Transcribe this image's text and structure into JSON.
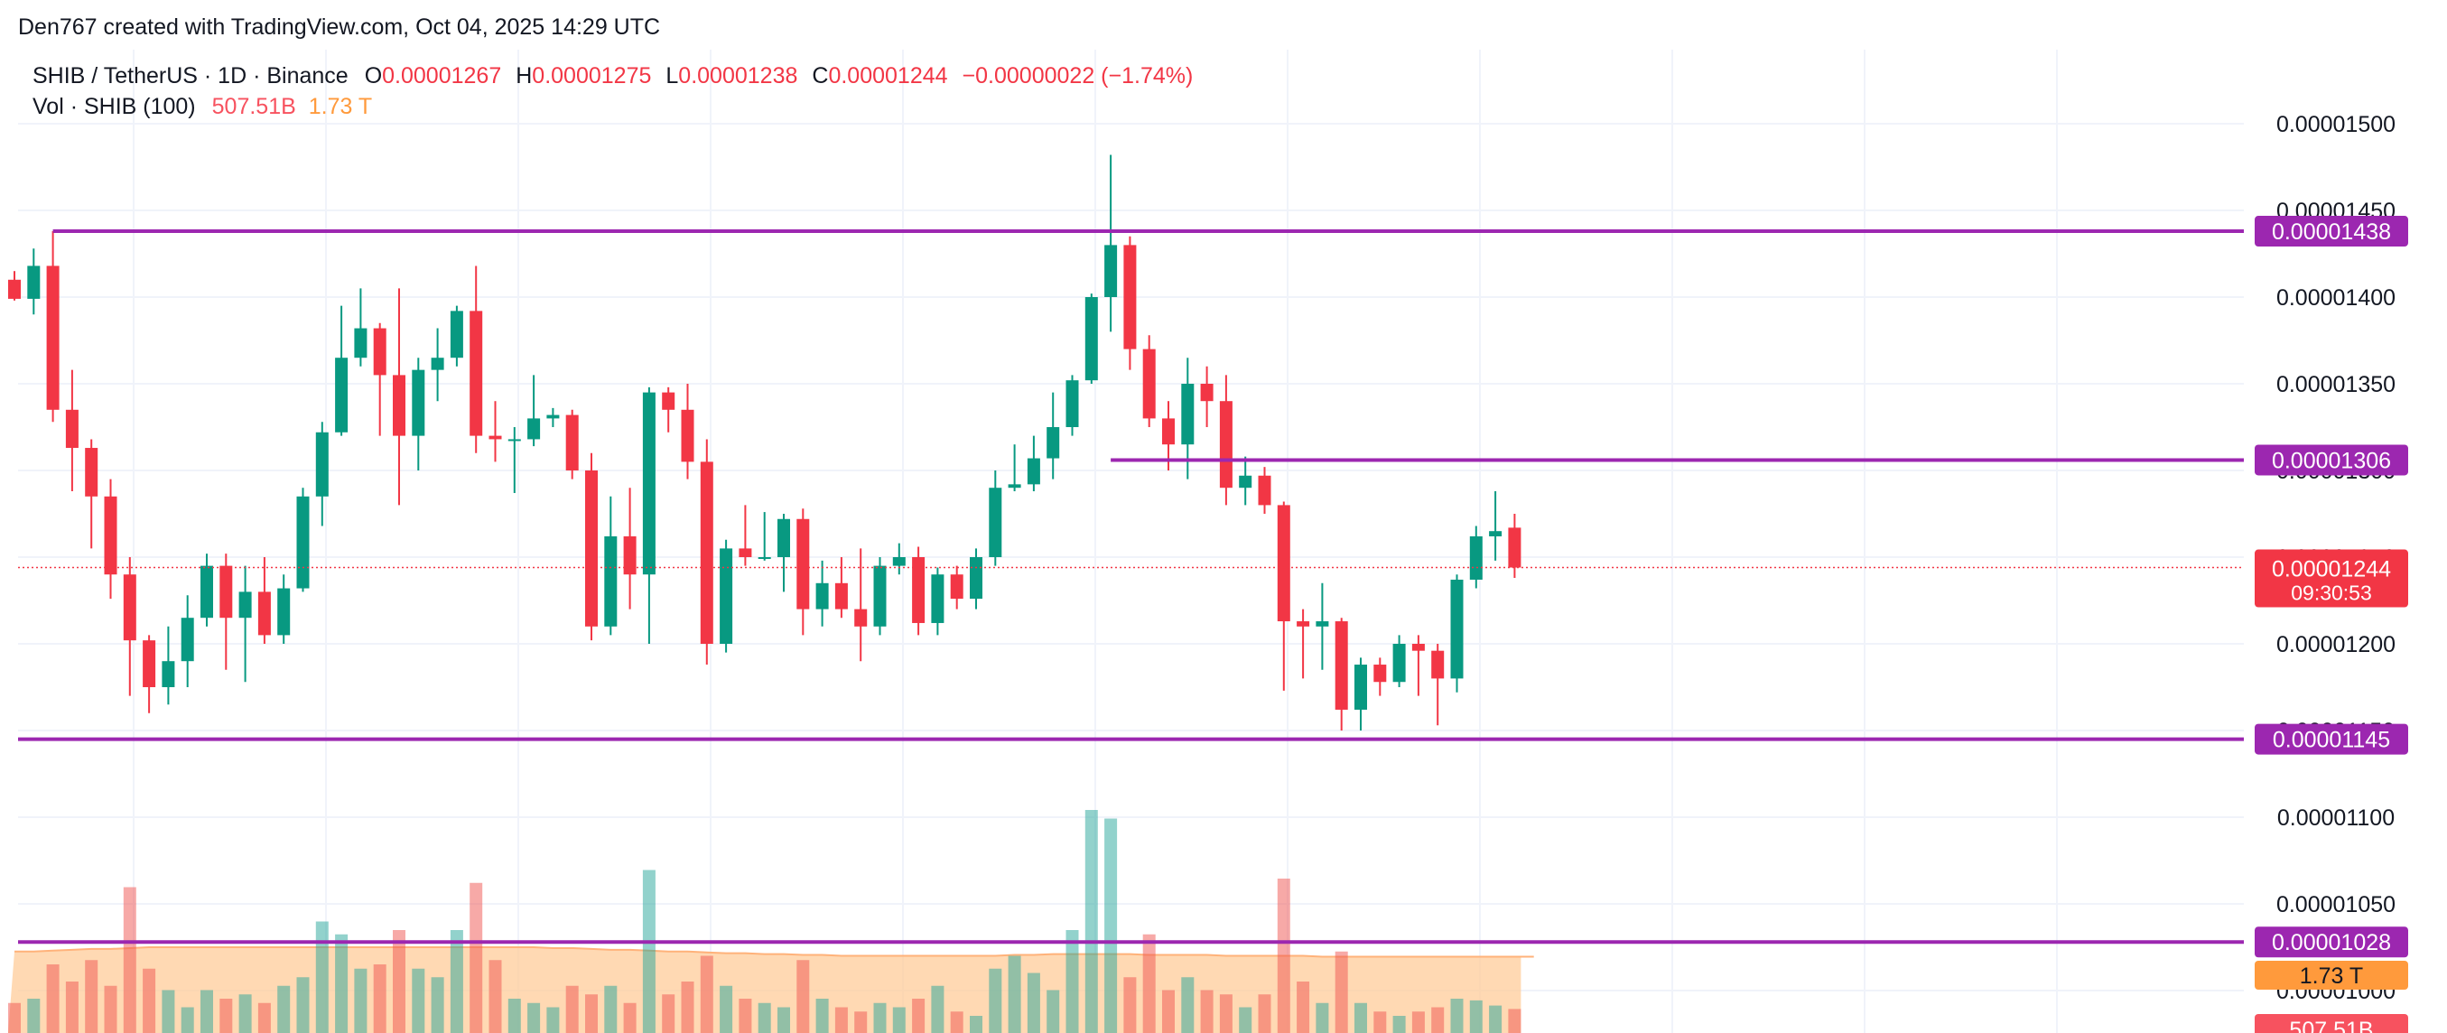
{
  "caption": "Den767 created with TradingView.com, Oct 04, 2025 14:29 UTC",
  "legend": {
    "symbol": "SHIB / TetherUS · 1D · Binance",
    "open_label": "O",
    "open": "0.00001267",
    "high_label": "H",
    "high": "0.00001275",
    "low_label": "L",
    "low": "0.00001238",
    "close_label": "C",
    "close": "0.00001244",
    "change": "−0.00000022 (−1.74%)",
    "volume_name": "Vol · SHIB (100)",
    "volume_value": "507.51B",
    "volume_ma": "1.73 T"
  },
  "colors": {
    "up": "#089981",
    "down": "#f23645",
    "line": "#9c27b0",
    "volume_area": "#ffcc99",
    "grid": "#f0f3fa"
  },
  "chart_data": {
    "type": "candlestick",
    "title": "",
    "xlabel": "",
    "ylabel": "",
    "ylim": [
      9.8e-06,
      1.55e-05
    ],
    "grid": true,
    "y_ticks": [
      "0.00001500",
      "0.00001450",
      "0.00001400",
      "0.00001350",
      "0.00001300",
      "0.00001250",
      "0.00001200",
      "0.00001150",
      "0.00001100",
      "0.00001050",
      "0.00001000"
    ],
    "horizontal_lines": [
      {
        "label": "0.00001438",
        "value": 1.438e-05,
        "from_index": 2
      },
      {
        "label": "0.00001306",
        "value": 1.306e-05,
        "from_index": 57
      },
      {
        "label": "0.00001145",
        "value": 1.145e-05,
        "from_index": 0
      },
      {
        "label": "0.00001028",
        "value": 1.028e-05,
        "from_index": 0
      }
    ],
    "last_price": {
      "label": "0.00001244",
      "value": 1.244e-05,
      "countdown": "09:30:53"
    },
    "volume_labels": {
      "ma_label": "1.73 T",
      "last_label": "507.51B"
    },
    "candles": [
      {
        "o": 1.41,
        "h": 1.415,
        "l": 1.398,
        "c": 1.399,
        "v": 0.35
      },
      {
        "o": 1.399,
        "h": 1.428,
        "l": 1.39,
        "c": 1.418,
        "v": 0.4
      },
      {
        "o": 1.418,
        "h": 1.438,
        "l": 1.328,
        "c": 1.335,
        "v": 0.8
      },
      {
        "o": 1.335,
        "h": 1.358,
        "l": 1.288,
        "c": 1.313,
        "v": 0.6
      },
      {
        "o": 1.313,
        "h": 1.318,
        "l": 1.255,
        "c": 1.285,
        "v": 0.85
      },
      {
        "o": 1.285,
        "h": 1.295,
        "l": 1.226,
        "c": 1.24,
        "v": 0.55
      },
      {
        "o": 1.24,
        "h": 1.25,
        "l": 1.17,
        "c": 1.202,
        "v": 1.7
      },
      {
        "o": 1.202,
        "h": 1.205,
        "l": 1.16,
        "c": 1.175,
        "v": 0.75
      },
      {
        "o": 1.175,
        "h": 1.21,
        "l": 1.165,
        "c": 1.19,
        "v": 0.5
      },
      {
        "o": 1.19,
        "h": 1.228,
        "l": 1.175,
        "c": 1.215,
        "v": 0.3
      },
      {
        "o": 1.215,
        "h": 1.252,
        "l": 1.21,
        "c": 1.245,
        "v": 0.5
      },
      {
        "o": 1.245,
        "h": 1.252,
        "l": 1.185,
        "c": 1.215,
        "v": 0.4
      },
      {
        "o": 1.215,
        "h": 1.245,
        "l": 1.178,
        "c": 1.23,
        "v": 0.45
      },
      {
        "o": 1.23,
        "h": 1.25,
        "l": 1.2,
        "c": 1.205,
        "v": 0.35
      },
      {
        "o": 1.205,
        "h": 1.24,
        "l": 1.2,
        "c": 1.232,
        "v": 0.55
      },
      {
        "o": 1.232,
        "h": 1.29,
        "l": 1.23,
        "c": 1.285,
        "v": 0.65
      },
      {
        "o": 1.285,
        "h": 1.328,
        "l": 1.268,
        "c": 1.322,
        "v": 1.3
      },
      {
        "o": 1.322,
        "h": 1.395,
        "l": 1.32,
        "c": 1.365,
        "v": 1.15
      },
      {
        "o": 1.365,
        "h": 1.405,
        "l": 1.36,
        "c": 1.382,
        "v": 0.75
      },
      {
        "o": 1.382,
        "h": 1.385,
        "l": 1.32,
        "c": 1.355,
        "v": 0.8
      },
      {
        "o": 1.355,
        "h": 1.405,
        "l": 1.28,
        "c": 1.32,
        "v": 1.2
      },
      {
        "o": 1.32,
        "h": 1.365,
        "l": 1.3,
        "c": 1.358,
        "v": 0.75
      },
      {
        "o": 1.358,
        "h": 1.382,
        "l": 1.34,
        "c": 1.365,
        "v": 0.65
      },
      {
        "o": 1.365,
        "h": 1.395,
        "l": 1.36,
        "c": 1.392,
        "v": 1.2
      },
      {
        "o": 1.392,
        "h": 1.418,
        "l": 1.31,
        "c": 1.32,
        "v": 1.75
      },
      {
        "o": 1.32,
        "h": 1.34,
        "l": 1.305,
        "c": 1.318,
        "v": 0.85
      },
      {
        "o": 1.318,
        "h": 1.325,
        "l": 1.287,
        "c": 1.318,
        "v": 0.4
      },
      {
        "o": 1.318,
        "h": 1.355,
        "l": 1.314,
        "c": 1.33,
        "v": 0.35
      },
      {
        "o": 1.33,
        "h": 1.336,
        "l": 1.325,
        "c": 1.332,
        "v": 0.3
      },
      {
        "o": 1.332,
        "h": 1.335,
        "l": 1.295,
        "c": 1.3,
        "v": 0.55
      },
      {
        "o": 1.3,
        "h": 1.31,
        "l": 1.202,
        "c": 1.21,
        "v": 0.45
      },
      {
        "o": 1.21,
        "h": 1.285,
        "l": 1.205,
        "c": 1.262,
        "v": 0.55
      },
      {
        "o": 1.262,
        "h": 1.29,
        "l": 1.22,
        "c": 1.24,
        "v": 0.35
      },
      {
        "o": 1.24,
        "h": 1.348,
        "l": 1.2,
        "c": 1.345,
        "v": 1.9
      },
      {
        "o": 1.345,
        "h": 1.348,
        "l": 1.322,
        "c": 1.335,
        "v": 0.45
      },
      {
        "o": 1.335,
        "h": 1.35,
        "l": 1.295,
        "c": 1.305,
        "v": 0.6
      },
      {
        "o": 1.305,
        "h": 1.318,
        "l": 1.188,
        "c": 1.2,
        "v": 0.9
      },
      {
        "o": 1.2,
        "h": 1.26,
        "l": 1.195,
        "c": 1.255,
        "v": 0.55
      },
      {
        "o": 1.255,
        "h": 1.28,
        "l": 1.245,
        "c": 1.25,
        "v": 0.4
      },
      {
        "o": 1.25,
        "h": 1.276,
        "l": 1.248,
        "c": 1.25,
        "v": 0.35
      },
      {
        "o": 1.25,
        "h": 1.275,
        "l": 1.23,
        "c": 1.272,
        "v": 0.3
      },
      {
        "o": 1.272,
        "h": 1.278,
        "l": 1.205,
        "c": 1.22,
        "v": 0.85
      },
      {
        "o": 1.22,
        "h": 1.248,
        "l": 1.21,
        "c": 1.235,
        "v": 0.4
      },
      {
        "o": 1.235,
        "h": 1.25,
        "l": 1.215,
        "c": 1.22,
        "v": 0.3
      },
      {
        "o": 1.22,
        "h": 1.255,
        "l": 1.19,
        "c": 1.21,
        "v": 0.25
      },
      {
        "o": 1.21,
        "h": 1.25,
        "l": 1.205,
        "c": 1.245,
        "v": 0.35
      },
      {
        "o": 1.245,
        "h": 1.258,
        "l": 1.24,
        "c": 1.25,
        "v": 0.3
      },
      {
        "o": 1.25,
        "h": 1.256,
        "l": 1.205,
        "c": 1.212,
        "v": 0.4
      },
      {
        "o": 1.212,
        "h": 1.244,
        "l": 1.205,
        "c": 1.24,
        "v": 0.55
      },
      {
        "o": 1.24,
        "h": 1.245,
        "l": 1.22,
        "c": 1.226,
        "v": 0.25
      },
      {
        "o": 1.226,
        "h": 1.255,
        "l": 1.22,
        "c": 1.25,
        "v": 0.2
      },
      {
        "o": 1.25,
        "h": 1.3,
        "l": 1.245,
        "c": 1.29,
        "v": 0.75
      },
      {
        "o": 1.29,
        "h": 1.315,
        "l": 1.288,
        "c": 1.292,
        "v": 0.9
      },
      {
        "o": 1.292,
        "h": 1.32,
        "l": 1.288,
        "c": 1.307,
        "v": 0.7
      },
      {
        "o": 1.307,
        "h": 1.345,
        "l": 1.295,
        "c": 1.325,
        "v": 0.5
      },
      {
        "o": 1.325,
        "h": 1.355,
        "l": 1.32,
        "c": 1.352,
        "v": 1.2
      },
      {
        "o": 1.352,
        "h": 1.402,
        "l": 1.35,
        "c": 1.4,
        "v": 2.6
      },
      {
        "o": 1.4,
        "h": 1.482,
        "l": 1.38,
        "c": 1.43,
        "v": 2.5
      },
      {
        "o": 1.43,
        "h": 1.435,
        "l": 1.358,
        "c": 1.37,
        "v": 0.65
      },
      {
        "o": 1.37,
        "h": 1.378,
        "l": 1.325,
        "c": 1.33,
        "v": 1.15
      },
      {
        "o": 1.33,
        "h": 1.34,
        "l": 1.3,
        "c": 1.315,
        "v": 0.5
      },
      {
        "o": 1.315,
        "h": 1.365,
        "l": 1.295,
        "c": 1.35,
        "v": 0.65
      },
      {
        "o": 1.35,
        "h": 1.36,
        "l": 1.325,
        "c": 1.34,
        "v": 0.5
      },
      {
        "o": 1.34,
        "h": 1.355,
        "l": 1.28,
        "c": 1.29,
        "v": 0.45
      },
      {
        "o": 1.29,
        "h": 1.308,
        "l": 1.28,
        "c": 1.297,
        "v": 0.3
      },
      {
        "o": 1.297,
        "h": 1.302,
        "l": 1.275,
        "c": 1.28,
        "v": 0.45
      },
      {
        "o": 1.28,
        "h": 1.282,
        "l": 1.173,
        "c": 1.213,
        "v": 1.8
      },
      {
        "o": 1.213,
        "h": 1.22,
        "l": 1.18,
        "c": 1.21,
        "v": 0.6
      },
      {
        "o": 1.21,
        "h": 1.235,
        "l": 1.185,
        "c": 1.213,
        "v": 0.35
      },
      {
        "o": 1.213,
        "h": 1.215,
        "l": 1.15,
        "c": 1.162,
        "v": 0.95
      },
      {
        "o": 1.162,
        "h": 1.192,
        "l": 1.15,
        "c": 1.188,
        "v": 0.35
      },
      {
        "o": 1.188,
        "h": 1.192,
        "l": 1.17,
        "c": 1.178,
        "v": 0.25
      },
      {
        "o": 1.178,
        "h": 1.205,
        "l": 1.175,
        "c": 1.2,
        "v": 0.2
      },
      {
        "o": 1.2,
        "h": 1.205,
        "l": 1.17,
        "c": 1.196,
        "v": 0.25
      },
      {
        "o": 1.196,
        "h": 1.2,
        "l": 1.153,
        "c": 1.18,
        "v": 0.3
      },
      {
        "o": 1.18,
        "h": 1.24,
        "l": 1.172,
        "c": 1.237,
        "v": 0.4
      },
      {
        "o": 1.237,
        "h": 1.268,
        "l": 1.232,
        "c": 1.262,
        "v": 0.38
      },
      {
        "o": 1.262,
        "h": 1.288,
        "l": 1.248,
        "c": 1.265,
        "v": 0.32
      },
      {
        "o": 1.267,
        "h": 1.275,
        "l": 1.238,
        "c": 1.244,
        "v": 0.28
      }
    ],
    "volume_ma": [
      0.95,
      0.95,
      0.96,
      0.97,
      0.98,
      0.98,
      0.99,
      1.0,
      1.0,
      1.0,
      1.0,
      1.0,
      1.0,
      1.0,
      1.0,
      1.0,
      1.0,
      1.0,
      1.0,
      1.0,
      1.0,
      1.0,
      1.0,
      1.0,
      1.0,
      1.0,
      1.0,
      1.0,
      0.99,
      0.99,
      0.98,
      0.97,
      0.97,
      0.96,
      0.95,
      0.95,
      0.94,
      0.93,
      0.93,
      0.92,
      0.92,
      0.91,
      0.91,
      0.9,
      0.9,
      0.9,
      0.9,
      0.9,
      0.9,
      0.9,
      0.9,
      0.9,
      0.91,
      0.91,
      0.92,
      0.92,
      0.92,
      0.92,
      0.92,
      0.91,
      0.91,
      0.91,
      0.91,
      0.9,
      0.9,
      0.9,
      0.9,
      0.9,
      0.89,
      0.89,
      0.89,
      0.89,
      0.89,
      0.89,
      0.89,
      0.89,
      0.89,
      0.89,
      0.89,
      0.89
    ]
  }
}
